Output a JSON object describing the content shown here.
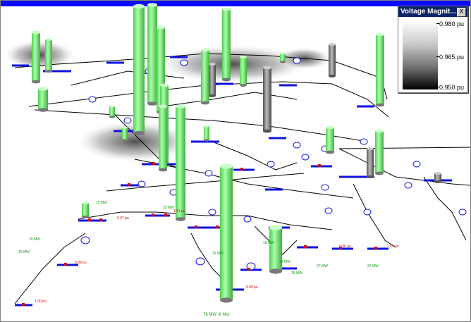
{
  "legend": {
    "title": "Voltage Magnit...",
    "close_glyph": "X",
    "ticks": [
      "0.980 pu",
      "0.965 pu",
      "0.950 pu"
    ],
    "scale_min": 0.95,
    "scale_max": 0.98,
    "gradient_colors": [
      "#ffffff",
      "#000000"
    ]
  },
  "colors": {
    "title_bar": "#0a0aff",
    "bus": "#1010e0",
    "line": "#000000",
    "cylinder": "#7cf27c",
    "breaker": "#d01010"
  },
  "labels": {
    "green": [
      "29 MW",
      "15 MW",
      "22 MW",
      "18 MW",
      "12 MW",
      "27 MW",
      "20 MW",
      "16 MW",
      "25 MW",
      "76 MW"
    ],
    "red": [
      "1.00 pu",
      "0.98 pu",
      "0.97 pu",
      "1.01 pu",
      "0.99 pu",
      "0.96 pu",
      "1.02 pu"
    ],
    "bottom": "76 MW  -6 Mvr"
  }
}
